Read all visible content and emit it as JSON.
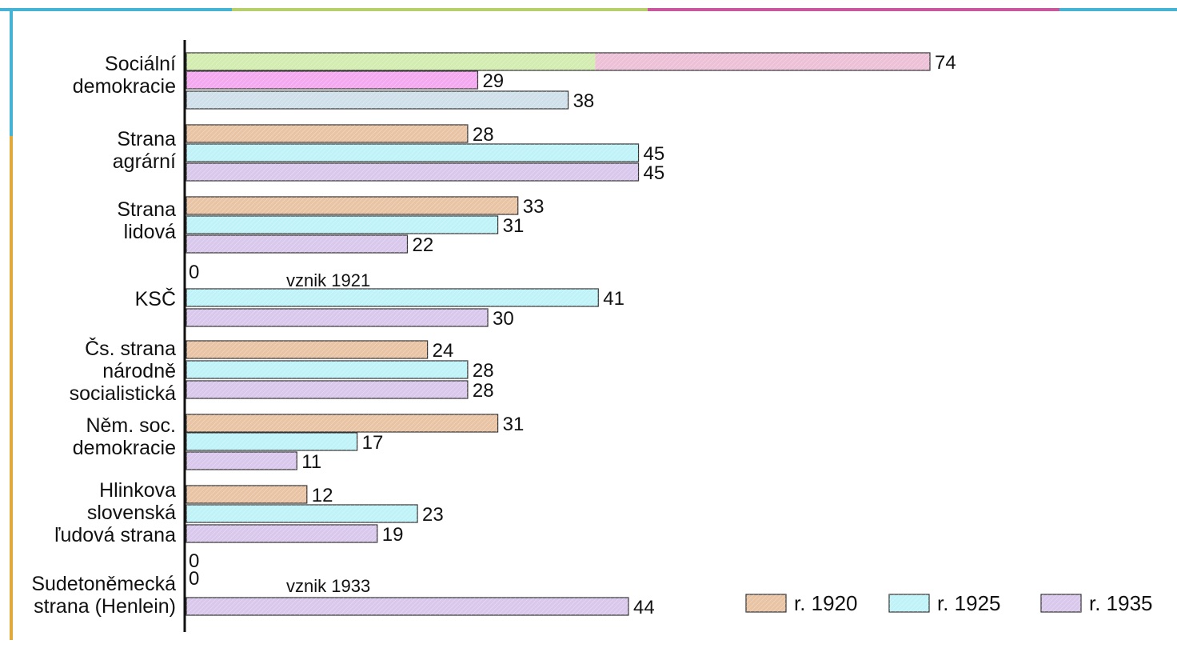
{
  "chart_data": {
    "type": "bar",
    "orientation": "horizontal",
    "categories": [
      [
        "Sociální",
        "demokracie"
      ],
      [
        "Strana",
        "agrární"
      ],
      [
        "Strana",
        "lidová"
      ],
      [
        "KSČ"
      ],
      [
        "Čs. strana",
        "národně",
        "socialistická"
      ],
      [
        "Něm. soc.",
        "demokracie"
      ],
      [
        "Hlinkova",
        "slovenská",
        "ľudová strana"
      ],
      [
        "Sudetoněmecká",
        "strana (Henlein)"
      ]
    ],
    "series": [
      {
        "name": "r. 1920",
        "values": [
          74,
          28,
          33,
          0,
          24,
          31,
          12,
          0
        ]
      },
      {
        "name": "r. 1925",
        "values": [
          29,
          45,
          31,
          41,
          28,
          17,
          23,
          0
        ]
      },
      {
        "name": "r. 1935",
        "values": [
          38,
          45,
          22,
          30,
          28,
          11,
          19,
          44
        ]
      }
    ],
    "annotations": [
      {
        "category_index": 3,
        "text": "vznik 1921"
      },
      {
        "category_index": 7,
        "text": "vznik 1933"
      }
    ],
    "legend_position": "bottom-right",
    "grid": false,
    "xlim": [
      0,
      74
    ],
    "colors": {
      "r. 1920": "#e9c4a4",
      "r. 1925": "#bff3f8",
      "r. 1935": "#d9c8ec",
      "sd_1920": "#d3ecb0",
      "sd_1920_end": "#ecc0d6",
      "sd_1925": "#f3a8ef",
      "sd_1935": "#cfe0ea"
    }
  }
}
